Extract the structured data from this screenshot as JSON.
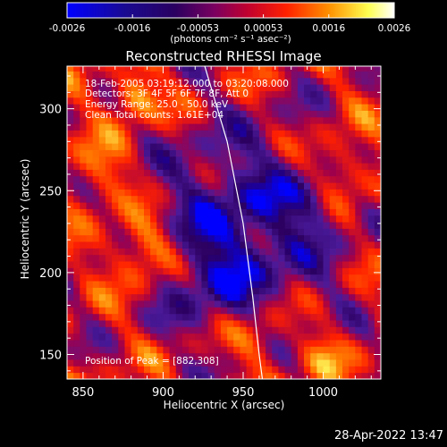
{
  "colorbar": {
    "ticks": [
      "-0.0026",
      "-0.0016",
      "-0.00053",
      "0.00053",
      "0.0016",
      "0.0026"
    ],
    "unit_label": "(photons cm⁻² s⁻¹ asec⁻²)"
  },
  "chart_data": {
    "type": "heatmap",
    "title": "Reconstructed RHESSI Image",
    "xlabel": "Heliocentric X (arcsec)",
    "ylabel": "Heliocentric Y (arcsec)",
    "xlim": [
      840,
      1036
    ],
    "ylim": [
      135,
      326
    ],
    "xticks": [
      850,
      900,
      950,
      1000
    ],
    "yticks": [
      150,
      200,
      250,
      300
    ],
    "zlim": [
      -0.0026,
      0.0026
    ],
    "colormap": [
      "#0000ff",
      "#2c0060",
      "#4a1a9a",
      "#a0004a",
      "#ff2000",
      "#ff8000",
      "#ffff60",
      "#ffffff"
    ],
    "annotations": [
      "18-Feb-2005 03:19:12.000 to 03:20:08.000",
      "Detectors: 3F 4F 5F 6F 7F 8F, Att 0",
      "Energy Range: 25.0 - 50.0 keV",
      "Clean     Total counts: 1.61E+04",
      "Position of Peak = [882,308]"
    ],
    "peak": [
      882,
      308
    ],
    "limb_curve": [
      [
        926,
        326
      ],
      [
        940,
        280
      ],
      [
        950,
        230
      ],
      [
        956,
        185
      ],
      [
        960,
        150
      ],
      [
        962,
        135
      ]
    ]
  },
  "footer": {
    "timestamp": "28-Apr-2022 13:47"
  }
}
